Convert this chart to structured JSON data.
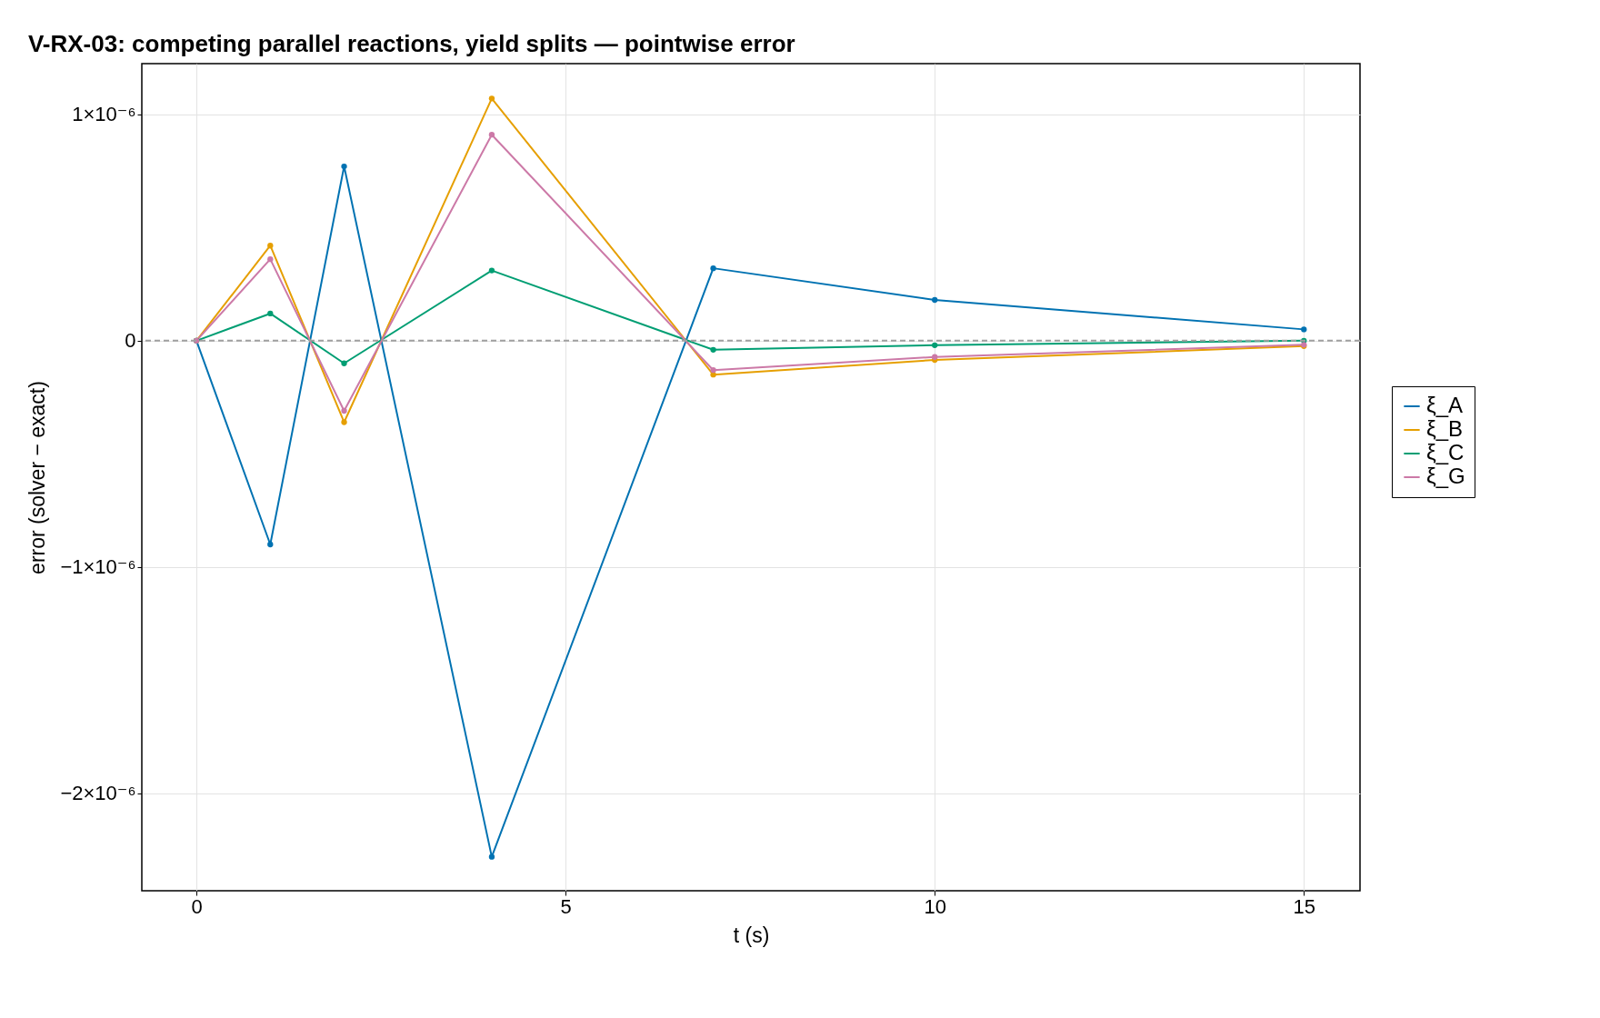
{
  "chart_data": {
    "type": "line",
    "title": "V-RX-03: competing parallel reactions, yield splits — pointwise error",
    "xlabel": "t (s)",
    "ylabel": "error (solver − exact)",
    "x": [
      0,
      1,
      2,
      4,
      7,
      10,
      15
    ],
    "series": [
      {
        "name": "ξ_A",
        "color": "#0072b2",
        "values": [
          0,
          -9e-07,
          7.7e-07,
          -2.28e-06,
          3.2e-07,
          1.8e-07,
          5e-08
        ]
      },
      {
        "name": "ξ_B",
        "color": "#e69f00",
        "values": [
          0,
          4.2e-07,
          -3.6e-07,
          1.07e-06,
          -1.5e-07,
          -8.5e-08,
          -2.4e-08
        ]
      },
      {
        "name": "ξ_C",
        "color": "#009e73",
        "values": [
          0,
          1.2e-07,
          -1e-07,
          3.1e-07,
          -4e-08,
          -2e-08,
          0
        ]
      },
      {
        "name": "ξ_G",
        "color": "#cc79a7",
        "values": [
          0,
          3.6e-07,
          -3.1e-07,
          9.1e-07,
          -1.3e-07,
          -7.2e-08,
          -1.8e-08
        ]
      }
    ],
    "xlim": [
      -0.74,
      15.76
    ],
    "xticks": [
      0,
      5,
      10,
      15
    ],
    "ylim": [
      -2.43e-06,
      1.224e-06
    ],
    "yticks": [
      {
        "value": -2e-06,
        "label": "−2×10⁻⁶"
      },
      {
        "value": -1e-06,
        "label": "−1×10⁻⁶"
      },
      0,
      {
        "value": 1e-06,
        "label": "1×10⁻⁶"
      }
    ],
    "ref_lines": [
      {
        "axis": "y",
        "value": 0,
        "label": null,
        "color": "#a0a0a0",
        "line_style": "dashed"
      }
    ],
    "grid": true,
    "legend": "right",
    "marker": "circle",
    "line_style": "solid"
  }
}
